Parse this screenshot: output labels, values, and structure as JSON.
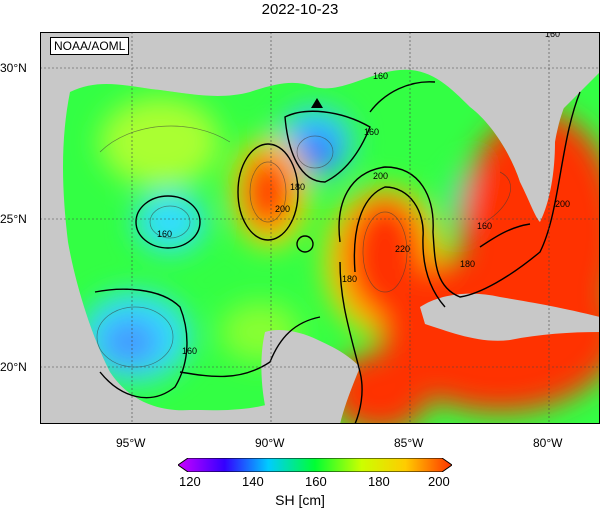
{
  "title": "2022-10-23",
  "credit": "NOAA/AOML",
  "lat_ticks": [
    "30°N",
    "25°N",
    "20°N"
  ],
  "lon_ticks": [
    "95°W",
    "90°W",
    "85°W",
    "80°W"
  ],
  "contour_labels": [
    "160",
    "160",
    "160",
    "160",
    "180",
    "180",
    "180",
    "200",
    "200",
    "200",
    "220",
    "160",
    "160"
  ],
  "colorbar": {
    "ticks": [
      "120",
      "140",
      "160",
      "180",
      "200"
    ],
    "label": "SH [cm]",
    "colors": [
      "#cc00ff",
      "#3300ff",
      "#00ccff",
      "#00ff33",
      "#ccff00",
      "#ffcc00",
      "#ff3300"
    ]
  },
  "marker": "buoy-triangle"
}
